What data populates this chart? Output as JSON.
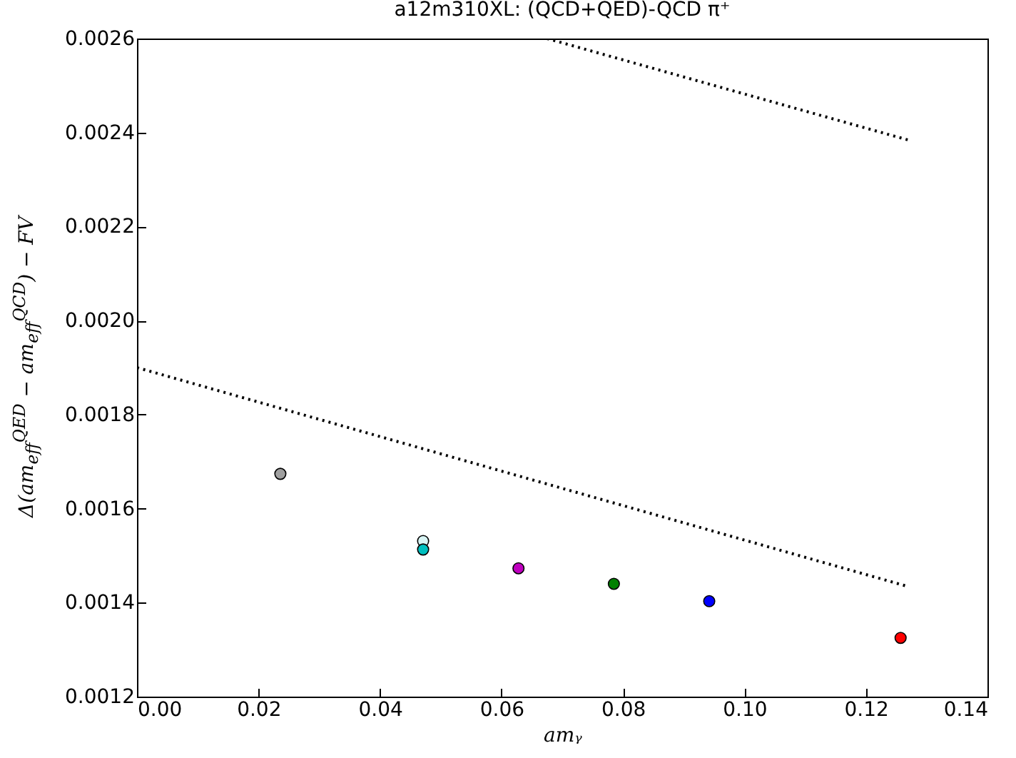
{
  "chart_data": {
    "type": "scatter",
    "title": "a12m310XL: (QCD+QED)-QCD π⁺",
    "xlabel": "amᵧ",
    "ylabel": "Δ(am$_{eff}$$^{QED}$ − am$_{eff}$$^{QCD}$) − FV",
    "xlim": [
      0,
      0.14
    ],
    "xticks": [
      {
        "value": 0,
        "label": "0.00"
      },
      0.02,
      0.04,
      0.06,
      0.08,
      {
        "value": 0.1,
        "label": "0.10"
      },
      0.12,
      0.14
    ],
    "ylim": [
      0.0012,
      0.0026
    ],
    "yticks": [
      0.0012,
      0.0014,
      0.0016,
      0.0018,
      {
        "value": 0.002,
        "label": "0.0020"
      },
      0.0022,
      0.0024,
      0.0026
    ],
    "grid": false,
    "series": [
      {
        "type": "line",
        "line_style": "dotted",
        "color": "#000000",
        "x": [
          0,
          0.127
        ],
        "values": [
          0.0019,
          0.001434
        ]
      },
      {
        "type": "line",
        "line_style": "dotted",
        "color": "#000000",
        "x": [
          0.0675,
          0.127
        ],
        "values": [
          0.0026,
          0.002384
        ]
      },
      {
        "marker": "circle",
        "x": [
          0.0236,
          0.0471,
          0.0471,
          0.0628,
          0.0785,
          0.0942,
          0.1257
        ],
        "values": [
          0.001674,
          0.001531,
          0.001513,
          0.001473,
          0.00144,
          0.001403,
          0.001325
        ],
        "colors": [
          "#a0a0a0",
          "#d8f4f4",
          "#00bfbf",
          "#bf00bf",
          "#008000",
          "#0000ff",
          "#ff0000"
        ]
      }
    ]
  }
}
